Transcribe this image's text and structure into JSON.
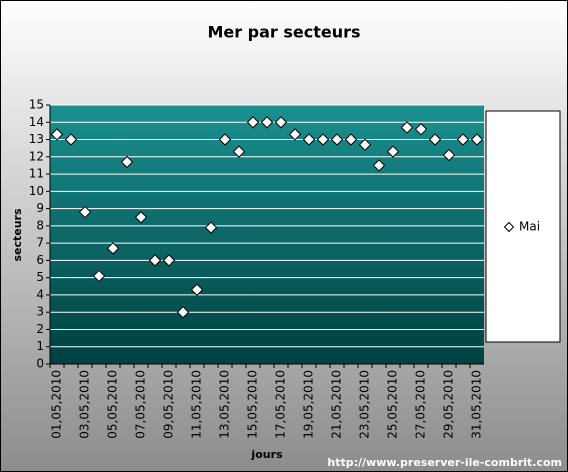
{
  "chart_data": {
    "type": "scatter",
    "title": "Mer par secteurs",
    "y_label": "secteurs",
    "x_label": "jours",
    "footer": "http://www.preserver-ile-combrit.com",
    "categories": [
      "01,05,2010",
      null,
      "03,05,2010",
      null,
      "05,05,2010",
      null,
      "07,05,2010",
      null,
      "09,05,2010",
      null,
      "11,05,2010",
      null,
      "13,05,2010",
      null,
      "15,05,2010",
      null,
      "17,05,2010",
      null,
      "19,05,2010",
      null,
      "21,05,2010",
      null,
      "23,05,2010",
      null,
      "25,05,2010",
      null,
      "27,05,2010",
      null,
      "29,05,2010",
      null,
      "31,05,2010"
    ],
    "series": [
      {
        "name": "Mai",
        "color": "#ffffff",
        "values": [
          13.3,
          13,
          8.8,
          5.1,
          6.7,
          11.7,
          8.5,
          6,
          6,
          3,
          4.3,
          7.9,
          13,
          12.3,
          14,
          14,
          14,
          13.3,
          13,
          13,
          13,
          13,
          12.7,
          11.5,
          12.3,
          13.7,
          13.6,
          13,
          12.1,
          13,
          13
        ]
      }
    ],
    "ylim": [
      0,
      15
    ],
    "yticks": [
      0,
      1,
      2,
      3,
      4,
      5,
      6,
      7,
      8,
      9,
      10,
      11,
      12,
      13,
      14,
      15
    ],
    "grid": true,
    "legend": "right"
  }
}
